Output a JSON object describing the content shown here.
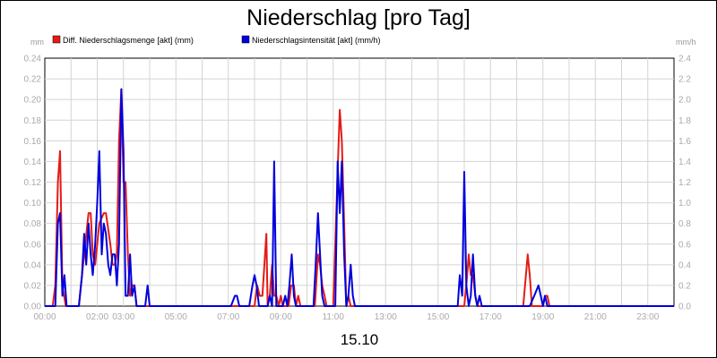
{
  "chart_data": {
    "type": "line",
    "title": "Niederschlag [pro Tag]",
    "date_label": "15.10",
    "y_left_unit": "mm",
    "y_right_unit": "mm/h",
    "y_left_ticks": [
      "0.00",
      "0.02",
      "0.04",
      "0.06",
      "0.08",
      "0.10",
      "0.12",
      "0.14",
      "0.16",
      "0.18",
      "0.20",
      "0.22",
      "0.24"
    ],
    "y_right_ticks": [
      "0.0",
      "0.2",
      "0.4",
      "0.6",
      "0.8",
      "1.0",
      "1.2",
      "1.4",
      "1.6",
      "1.8",
      "2.0",
      "2.2",
      "2.4"
    ],
    "x_ticks": [
      "00:00",
      "02:00",
      "03:00",
      "05:00",
      "07:00",
      "09:00",
      "11:00",
      "13:00",
      "15:00",
      "17:00",
      "19:00",
      "21:00",
      "23:00"
    ],
    "x_tick_hours": [
      0,
      2,
      3,
      5,
      7,
      9,
      11,
      13,
      15,
      17,
      19,
      21,
      23
    ],
    "xlim_hours": [
      0,
      24
    ],
    "ylim_left": [
      0,
      0.24
    ],
    "ylim_right": [
      0,
      2.4
    ],
    "grid": true,
    "legend_position": "top-left",
    "series": [
      {
        "name": "Diff. Niederschlagsmenge [akt] (mm)",
        "color": "#e41b17",
        "axis": "left",
        "points": [
          [
            0,
            0
          ],
          [
            0.3,
            0
          ],
          [
            0.4,
            0.02
          ],
          [
            0.5,
            0.12
          ],
          [
            0.58,
            0.15
          ],
          [
            0.67,
            0.02
          ],
          [
            0.8,
            0
          ],
          [
            1.3,
            0
          ],
          [
            1.5,
            0.05
          ],
          [
            1.67,
            0.09
          ],
          [
            1.75,
            0.09
          ],
          [
            1.83,
            0.05
          ],
          [
            1.92,
            0.04
          ],
          [
            2.0,
            0.06
          ],
          [
            2.08,
            0.08
          ],
          [
            2.25,
            0.09
          ],
          [
            2.33,
            0.09
          ],
          [
            2.5,
            0.06
          ],
          [
            2.58,
            0.04
          ],
          [
            2.67,
            0.04
          ],
          [
            2.75,
            0.05
          ],
          [
            2.83,
            0.16
          ],
          [
            2.92,
            0.21
          ],
          [
            3.0,
            0.12
          ],
          [
            3.08,
            0.12
          ],
          [
            3.17,
            0.05
          ],
          [
            3.25,
            0.01
          ],
          [
            3.33,
            0.02
          ],
          [
            3.42,
            0.02
          ],
          [
            3.5,
            0
          ],
          [
            8.0,
            0
          ],
          [
            8.1,
            0.02
          ],
          [
            8.2,
            0.01
          ],
          [
            8.3,
            0.01
          ],
          [
            8.45,
            0.07
          ],
          [
            8.5,
            0
          ],
          [
            8.58,
            0.01
          ],
          [
            8.67,
            0.04
          ],
          [
            8.75,
            0.01
          ],
          [
            8.83,
            0.01
          ],
          [
            8.92,
            0
          ],
          [
            9.0,
            0.01
          ],
          [
            9.08,
            0
          ],
          [
            9.3,
            0
          ],
          [
            9.4,
            0.02
          ],
          [
            9.5,
            0.02
          ],
          [
            9.58,
            0
          ],
          [
            9.67,
            0.01
          ],
          [
            9.75,
            0
          ],
          [
            10.3,
            0
          ],
          [
            10.42,
            0.05
          ],
          [
            10.5,
            0.04
          ],
          [
            10.58,
            0.02
          ],
          [
            10.67,
            0.01
          ],
          [
            10.75,
            0
          ],
          [
            11.0,
            0
          ],
          [
            11.08,
            0.06
          ],
          [
            11.17,
            0.13
          ],
          [
            11.25,
            0.19
          ],
          [
            11.33,
            0.16
          ],
          [
            11.42,
            0.08
          ],
          [
            11.5,
            0
          ],
          [
            11.58,
            0.01
          ],
          [
            11.67,
            0
          ],
          [
            16.0,
            0
          ],
          [
            16.08,
            0.02
          ],
          [
            16.17,
            0.05
          ],
          [
            16.25,
            0.03
          ],
          [
            16.33,
            0.03
          ],
          [
            16.42,
            0.01
          ],
          [
            16.5,
            0
          ],
          [
            18.25,
            0
          ],
          [
            18.42,
            0.05
          ],
          [
            18.5,
            0.03
          ],
          [
            18.58,
            0
          ],
          [
            19.0,
            0
          ],
          [
            19.08,
            0.01
          ],
          [
            19.17,
            0.01
          ],
          [
            19.25,
            0
          ],
          [
            24,
            0
          ]
        ]
      },
      {
        "name": "Niederschlagsintensität [akt] (mm/h)",
        "color": "#0000dd",
        "axis": "right",
        "points": [
          [
            0,
            0
          ],
          [
            0.4,
            0
          ],
          [
            0.5,
            0.8
          ],
          [
            0.58,
            0.9
          ],
          [
            0.67,
            0.1
          ],
          [
            0.75,
            0.3
          ],
          [
            0.83,
            0
          ],
          [
            1.3,
            0
          ],
          [
            1.42,
            0.3
          ],
          [
            1.5,
            0.7
          ],
          [
            1.58,
            0.4
          ],
          [
            1.67,
            0.8
          ],
          [
            1.75,
            0.5
          ],
          [
            1.83,
            0.3
          ],
          [
            1.92,
            0.6
          ],
          [
            2.0,
            1.0
          ],
          [
            2.08,
            1.5
          ],
          [
            2.17,
            0.5
          ],
          [
            2.25,
            0.8
          ],
          [
            2.33,
            0.7
          ],
          [
            2.42,
            0.4
          ],
          [
            2.5,
            0.3
          ],
          [
            2.58,
            0.5
          ],
          [
            2.67,
            0.5
          ],
          [
            2.75,
            0.2
          ],
          [
            2.83,
            0.6
          ],
          [
            2.92,
            2.1
          ],
          [
            3.0,
            1.5
          ],
          [
            3.08,
            0.1
          ],
          [
            3.17,
            0.1
          ],
          [
            3.25,
            0.5
          ],
          [
            3.33,
            0.1
          ],
          [
            3.42,
            0.2
          ],
          [
            3.5,
            0
          ],
          [
            3.83,
            0
          ],
          [
            3.92,
            0.2
          ],
          [
            4.0,
            0
          ],
          [
            7.1,
            0
          ],
          [
            7.25,
            0.1
          ],
          [
            7.33,
            0.1
          ],
          [
            7.42,
            0
          ],
          [
            7.8,
            0
          ],
          [
            7.92,
            0.2
          ],
          [
            8.0,
            0.3
          ],
          [
            8.08,
            0.2
          ],
          [
            8.17,
            0
          ],
          [
            8.5,
            0
          ],
          [
            8.58,
            0.1
          ],
          [
            8.67,
            0
          ],
          [
            8.75,
            1.4
          ],
          [
            8.83,
            0
          ],
          [
            9.08,
            0
          ],
          [
            9.17,
            0.1
          ],
          [
            9.25,
            0
          ],
          [
            9.33,
            0.2
          ],
          [
            9.42,
            0.5
          ],
          [
            9.5,
            0.1
          ],
          [
            9.58,
            0
          ],
          [
            10.25,
            0
          ],
          [
            10.33,
            0.4
          ],
          [
            10.42,
            0.9
          ],
          [
            10.5,
            0.5
          ],
          [
            10.58,
            0.1
          ],
          [
            10.67,
            0
          ],
          [
            11.08,
            0
          ],
          [
            11.17,
            1.4
          ],
          [
            11.25,
            0.9
          ],
          [
            11.33,
            1.4
          ],
          [
            11.42,
            0.5
          ],
          [
            11.5,
            0
          ],
          [
            11.58,
            0.1
          ],
          [
            11.67,
            0.4
          ],
          [
            11.75,
            0.1
          ],
          [
            11.83,
            0
          ],
          [
            15.75,
            0
          ],
          [
            15.83,
            0.3
          ],
          [
            15.92,
            0.1
          ],
          [
            16.0,
            1.3
          ],
          [
            16.08,
            0.2
          ],
          [
            16.17,
            0
          ],
          [
            16.25,
            0.1
          ],
          [
            16.33,
            0.5
          ],
          [
            16.42,
            0.1
          ],
          [
            16.5,
            0
          ],
          [
            16.58,
            0.1
          ],
          [
            16.67,
            0
          ],
          [
            18.5,
            0
          ],
          [
            18.67,
            0.1
          ],
          [
            18.83,
            0.2
          ],
          [
            18.92,
            0.1
          ],
          [
            19.0,
            0
          ],
          [
            19.08,
            0.1
          ],
          [
            19.17,
            0
          ],
          [
            24,
            0
          ]
        ]
      }
    ]
  }
}
